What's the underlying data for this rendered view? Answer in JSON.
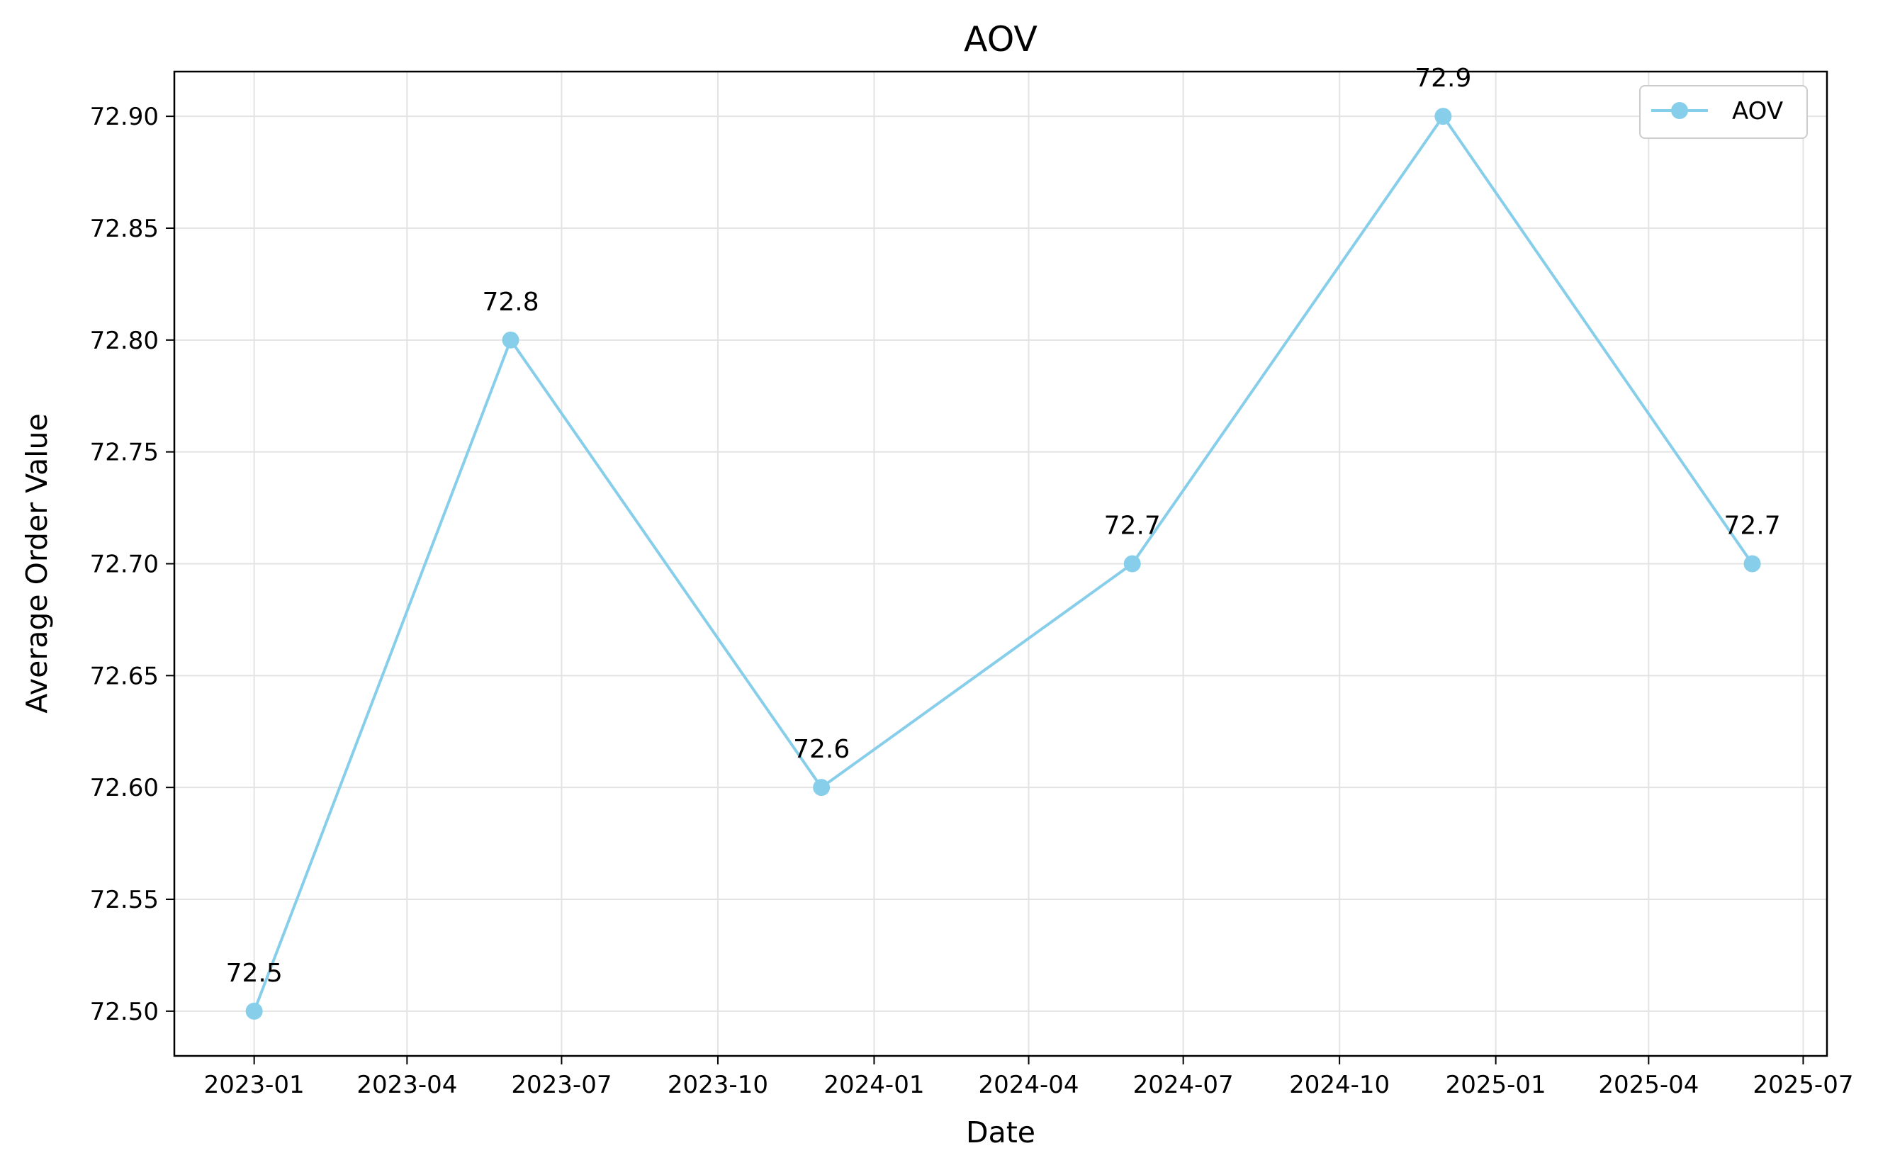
{
  "chart_data": {
    "type": "line",
    "title": "AOV",
    "xlabel": "Date",
    "ylabel": "Average Order Value",
    "x": [
      "2023-01-01",
      "2023-06-01",
      "2023-12-01",
      "2024-06-01",
      "2024-12-01",
      "2025-06-01"
    ],
    "series": [
      {
        "name": "AOV",
        "values": [
          72.5,
          72.8,
          72.6,
          72.7,
          72.9,
          72.7
        ],
        "color": "#87CEEB"
      }
    ],
    "data_labels": [
      "72.5",
      "72.8",
      "72.6",
      "72.7",
      "72.9",
      "72.7"
    ],
    "ylim": [
      72.48,
      72.92
    ],
    "xlim": [
      "2022-11-15",
      "2025-07-15"
    ],
    "yticks": [
      72.5,
      72.55,
      72.6,
      72.65,
      72.7,
      72.75,
      72.8,
      72.85,
      72.9
    ],
    "ytick_labels": [
      "72.50",
      "72.55",
      "72.60",
      "72.65",
      "72.70",
      "72.75",
      "72.80",
      "72.85",
      "72.90"
    ],
    "xticks": [
      "2023-01-01",
      "2023-04-01",
      "2023-07-01",
      "2023-10-01",
      "2024-01-01",
      "2024-04-01",
      "2024-07-01",
      "2024-10-01",
      "2025-01-01",
      "2025-04-01",
      "2025-07-01"
    ],
    "xtick_labels": [
      "2023-01",
      "2023-04",
      "2023-07",
      "2023-10",
      "2024-01",
      "2024-04",
      "2024-07",
      "2024-10",
      "2025-01",
      "2025-04",
      "2025-07"
    ],
    "grid": true,
    "legend_position": "top-right",
    "marker": "circle"
  }
}
